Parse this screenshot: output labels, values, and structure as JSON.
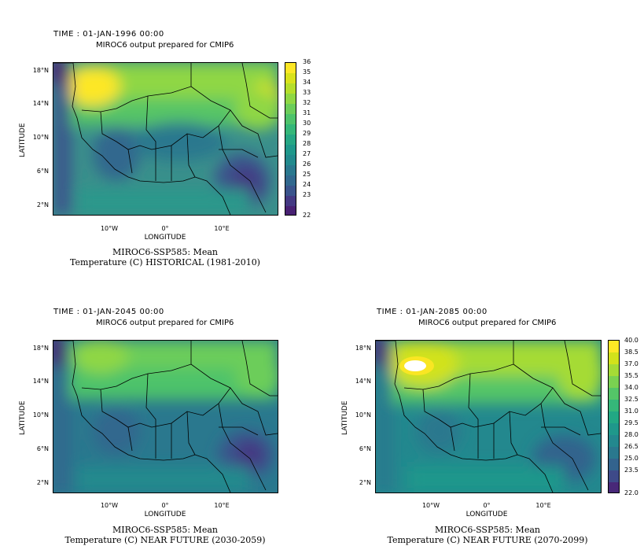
{
  "panels": [
    {
      "time": "TIME : 01-JAN-1996 00:00",
      "subtitle": "MIROC6 output prepared for CMIP6",
      "caption_line1": "MIROC6-SSP585: Mean",
      "caption_line2": "Temperature (C) HISTORICAL (1981-2010)",
      "ylabels": [
        "18°N",
        "14°N",
        "10°N",
        "6°N",
        "2°N"
      ],
      "xlabels": [
        "10°W",
        "0°",
        "10°E"
      ],
      "ytitle": "LATITUDE",
      "xtitle": "LONGITUDE",
      "colorbar": [
        "36",
        "35",
        "34",
        "33",
        "32",
        "31",
        "30",
        "29",
        "28",
        "27",
        "26",
        "25",
        "24",
        "23",
        "22"
      ],
      "palette": [
        "#fde725",
        "#d9e21b",
        "#b5de2b",
        "#8fd744",
        "#6ccd5a",
        "#4ec36b",
        "#35b779",
        "#26a784",
        "#1f988b",
        "#228a8d",
        "#2a788e",
        "#31688e",
        "#3a548c",
        "#443983",
        "#482173"
      ]
    },
    {
      "time": "TIME : 01-JAN-2045 00:00",
      "subtitle": "MIROC6 output prepared for CMIP6",
      "caption_line1": "MIROC6-SSP585: Mean",
      "caption_line2": "Temperature (C) NEAR FUTURE (2030-2059)",
      "ylabels": [
        "18°N",
        "14°N",
        "10°N",
        "6°N",
        "2°N"
      ],
      "xlabels": [
        "10°W",
        "0°",
        "10°E"
      ],
      "ytitle": "LATITUDE",
      "xtitle": "LONGITUDE"
    },
    {
      "time": "TIME : 01-JAN-2085 00:00",
      "subtitle": "MIROC6 output prepared for CMIP6",
      "caption_line1": "MIROC6-SSP585: Mean",
      "caption_line2": "Temperature (C) NEAR FUTURE (2070-2099)",
      "ylabels": [
        "18°N",
        "14°N",
        "10°N",
        "6°N",
        "2°N"
      ],
      "xlabels": [
        "10°W",
        "0°",
        "10°E"
      ],
      "ytitle": "LATITUDE",
      "xtitle": "LONGITUDE",
      "colorbar": [
        "40.0",
        "38.5",
        "37.0",
        "35.5",
        "34.0",
        "32.5",
        "31.0",
        "29.5",
        "28.0",
        "26.5",
        "25.0",
        "23.5",
        "22.0"
      ],
      "palette": [
        "#fde725",
        "#d2e21b",
        "#a5db36",
        "#7ad151",
        "#54c568",
        "#35b779",
        "#22a884",
        "#1f988b",
        "#23888e",
        "#2a788e",
        "#33638d",
        "#3e4a89",
        "#482878"
      ]
    }
  ]
}
